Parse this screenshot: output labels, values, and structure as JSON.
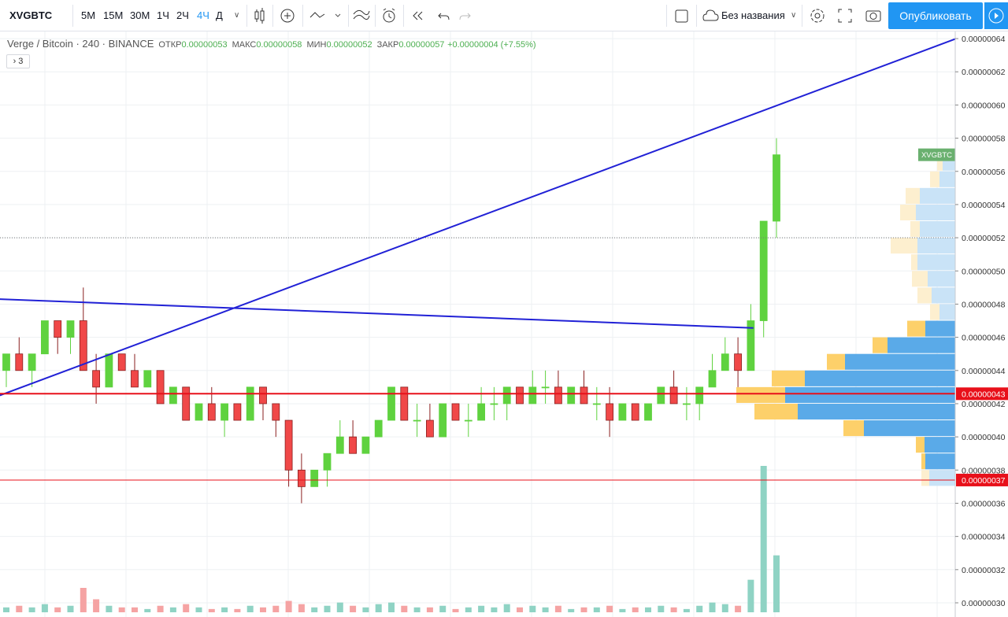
{
  "toolbar": {
    "symbol": "XVGBTC",
    "intervals": [
      "5М",
      "15М",
      "30М",
      "1Ч",
      "2Ч",
      "4Ч",
      "Д"
    ],
    "active_interval": 5,
    "layout_name": "Без названия",
    "publish": "Опубликовать"
  },
  "legend": {
    "title": "Verge / Bitcoin · 240 · BINANCE",
    "items": [
      {
        "label": "ОТКР",
        "value": "0.00000053"
      },
      {
        "label": "МАКС",
        "value": "0.00000058"
      },
      {
        "label": "МИН",
        "value": "0.00000052"
      },
      {
        "label": "ЗАКР",
        "value": "0.00000057"
      }
    ],
    "change": "+0.00000004 (+7.55%)",
    "indicators": "3"
  },
  "chart_data": {
    "type": "candlestick",
    "grid": true,
    "up_color": "#5fd23f",
    "down_color": "#f04848",
    "volume_up_color": "#8fd3c4",
    "volume_down_color": "#f5a3a3",
    "ylim": [
      2.943e-07,
      6.443e-07
    ],
    "yticks": [
      {
        "value": 3e-07,
        "label": "0.00000030"
      },
      {
        "value": 3.2e-07,
        "label": "0.00000032"
      },
      {
        "value": 3.4e-07,
        "label": "0.00000034"
      },
      {
        "value": 3.6e-07,
        "label": "0.00000036"
      },
      {
        "value": 3.8e-07,
        "label": "0.00000038"
      },
      {
        "value": 4e-07,
        "label": "0.00000040"
      },
      {
        "value": 4.2e-07,
        "label": "0.00000042"
      },
      {
        "value": 4.4e-07,
        "label": "0.00000044"
      },
      {
        "value": 4.6e-07,
        "label": "0.00000046"
      },
      {
        "value": 4.8e-07,
        "label": "0.00000048"
      },
      {
        "value": 5e-07,
        "label": "0.00000050"
      },
      {
        "value": 5.2e-07,
        "label": "0.00000052"
      },
      {
        "value": 5.4e-07,
        "label": "0.00000054"
      },
      {
        "value": 5.6e-07,
        "label": "0.00000056"
      },
      {
        "value": 5.8e-07,
        "label": "0.00000058"
      },
      {
        "value": 6e-07,
        "label": "0.00000060"
      },
      {
        "value": 6.2e-07,
        "label": "0.00000062"
      },
      {
        "value": 6.4e-07,
        "label": "0.00000064"
      }
    ],
    "open": [
      4.4e-07,
      4.5e-07,
      4.4e-07,
      4.5e-07,
      4.7e-07,
      4.6e-07,
      4.7e-07,
      4.4e-07,
      4.3e-07,
      4.5e-07,
      4.4e-07,
      4.3e-07,
      4.4e-07,
      4.2e-07,
      4.3e-07,
      4.1e-07,
      4.2e-07,
      4.1e-07,
      4.2e-07,
      4.1e-07,
      4.3e-07,
      4.2e-07,
      4.1e-07,
      3.8e-07,
      3.7e-07,
      3.8e-07,
      3.9e-07,
      4e-07,
      3.9e-07,
      4e-07,
      4.1e-07,
      4.3e-07,
      4.1e-07,
      4.1e-07,
      4e-07,
      4.2e-07,
      4.1e-07,
      4.1e-07,
      4.2e-07,
      4.2e-07,
      4.3e-07,
      4.2e-07,
      4.3e-07,
      4.3e-07,
      4.2e-07,
      4.3e-07,
      4.2e-07,
      4.2e-07,
      4.1e-07,
      4.2e-07,
      4.1e-07,
      4.2e-07,
      4.3e-07,
      4.2e-07,
      4.2e-07,
      4.3e-07,
      4.4e-07,
      4.5e-07,
      4.4e-07,
      4.7e-07,
      5.3e-07
    ],
    "high": [
      4.5e-07,
      4.6e-07,
      4.5e-07,
      4.7e-07,
      4.7e-07,
      4.7e-07,
      4.9e-07,
      4.5e-07,
      4.5e-07,
      4.5e-07,
      4.5e-07,
      4.4e-07,
      4.4e-07,
      4.3e-07,
      4.3e-07,
      4.2e-07,
      4.3e-07,
      4.2e-07,
      4.2e-07,
      4.3e-07,
      4.3e-07,
      4.2e-07,
      4.1e-07,
      3.9e-07,
      3.8e-07,
      3.9e-07,
      4.1e-07,
      4.1e-07,
      4e-07,
      4.1e-07,
      4.3e-07,
      4.3e-07,
      4.2e-07,
      4.2e-07,
      4.2e-07,
      4.2e-07,
      4.2e-07,
      4.3e-07,
      4.3e-07,
      4.3e-07,
      4.3e-07,
      4.4e-07,
      4.4e-07,
      4.4e-07,
      4.3e-07,
      4.4e-07,
      4.3e-07,
      4.3e-07,
      4.2e-07,
      4.2e-07,
      4.2e-07,
      4.3e-07,
      4.4e-07,
      4.3e-07,
      4.3e-07,
      4.5e-07,
      4.6e-07,
      4.6e-07,
      4.8e-07,
      5.3e-07,
      5.8e-07
    ],
    "low": [
      4.3e-07,
      4.4e-07,
      4.3e-07,
      4.5e-07,
      4.5e-07,
      4.5e-07,
      4.4e-07,
      4.2e-07,
      4.3e-07,
      4.4e-07,
      4.3e-07,
      4.3e-07,
      4.2e-07,
      4.2e-07,
      4.1e-07,
      4.1e-07,
      4.1e-07,
      4e-07,
      4.1e-07,
      4.1e-07,
      4.1e-07,
      4e-07,
      3.7e-07,
      3.6e-07,
      3.7e-07,
      3.7e-07,
      3.9e-07,
      3.9e-07,
      3.9e-07,
      4e-07,
      4.1e-07,
      4.1e-07,
      4e-07,
      4e-07,
      4e-07,
      4.1e-07,
      4e-07,
      4.1e-07,
      4.1e-07,
      4.1e-07,
      4.2e-07,
      4.2e-07,
      4.2e-07,
      4.2e-07,
      4.2e-07,
      4.2e-07,
      4.1e-07,
      4e-07,
      4.1e-07,
      4.1e-07,
      4.1e-07,
      4.2e-07,
      4.2e-07,
      4.1e-07,
      4.1e-07,
      4.3e-07,
      4.4e-07,
      4.3e-07,
      4.4e-07,
      4.6e-07,
      5.2e-07
    ],
    "close": [
      4.5e-07,
      4.4e-07,
      4.5e-07,
      4.7e-07,
      4.6e-07,
      4.7e-07,
      4.4e-07,
      4.3e-07,
      4.5e-07,
      4.4e-07,
      4.3e-07,
      4.4e-07,
      4.2e-07,
      4.3e-07,
      4.1e-07,
      4.2e-07,
      4.1e-07,
      4.2e-07,
      4.1e-07,
      4.3e-07,
      4.2e-07,
      4.1e-07,
      3.8e-07,
      3.7e-07,
      3.8e-07,
      3.9e-07,
      4e-07,
      3.9e-07,
      4e-07,
      4.1e-07,
      4.3e-07,
      4.1e-07,
      4.1e-07,
      4e-07,
      4.2e-07,
      4.1e-07,
      4.1e-07,
      4.2e-07,
      4.2e-07,
      4.3e-07,
      4.2e-07,
      4.3e-07,
      4.3e-07,
      4.2e-07,
      4.3e-07,
      4.2e-07,
      4.2e-07,
      4.1e-07,
      4.2e-07,
      4.1e-07,
      4.2e-07,
      4.3e-07,
      4.2e-07,
      4.2e-07,
      4.3e-07,
      4.4e-07,
      4.5e-07,
      4.4e-07,
      4.7e-07,
      5.3e-07,
      5.7e-07
    ],
    "volume": [
      3,
      4,
      3,
      5,
      3,
      4,
      15,
      8,
      4,
      3,
      3,
      2,
      4,
      3,
      5,
      3,
      2,
      3,
      2,
      4,
      3,
      4,
      7,
      5,
      3,
      4,
      6,
      4,
      3,
      5,
      6,
      4,
      3,
      3,
      4,
      2,
      3,
      4,
      3,
      5,
      3,
      4,
      3,
      4,
      2,
      3,
      3,
      4,
      2,
      3,
      3,
      4,
      3,
      2,
      4,
      6,
      5,
      4,
      20,
      90,
      35
    ],
    "volume_profile": {
      "up_color": "#5aaae8",
      "down_color": "#fdd06a",
      "light_up_color": "#c9e3f7",
      "light_down_color": "#fdefcf",
      "value_area": [
        3.8e-07,
        4.7e-07
      ],
      "rows": [
        {
          "price": 5.6e-07,
          "up": 16,
          "down": 7
        },
        {
          "price": 5.5e-07,
          "up": 20,
          "down": 12
        },
        {
          "price": 5.4e-07,
          "up": 45,
          "down": 18
        },
        {
          "price": 5.3e-07,
          "up": 50,
          "down": 20
        },
        {
          "price": 5.2e-07,
          "up": 45,
          "down": 12
        },
        {
          "price": 5.1e-07,
          "up": 48,
          "down": 34
        },
        {
          "price": 5e-07,
          "up": 48,
          "down": 8
        },
        {
          "price": 4.9e-07,
          "up": 35,
          "down": 20
        },
        {
          "price": 4.8e-07,
          "up": 30,
          "down": 18
        },
        {
          "price": 4.7e-07,
          "up": 20,
          "down": 12
        },
        {
          "price": 4.6e-07,
          "up": 38,
          "down": 23
        },
        {
          "price": 4.5e-07,
          "up": 86,
          "down": 19
        },
        {
          "price": 4.4e-07,
          "up": 140,
          "down": 23
        },
        {
          "price": 4.3e-07,
          "up": 191,
          "down": 42
        },
        {
          "price": 4.2e-07,
          "up": 216,
          "down": 62
        },
        {
          "price": 4.1e-07,
          "up": 200,
          "down": 55
        },
        {
          "price": 4e-07,
          "up": 116,
          "down": 26
        },
        {
          "price": 3.9e-07,
          "up": 39,
          "down": 11
        },
        {
          "price": 3.8e-07,
          "up": 38,
          "down": 5
        },
        {
          "price": 3.7e-07,
          "up": 33,
          "down": 10
        }
      ]
    },
    "trend_lines": [
      {
        "x": [
          -0.5,
          74
        ],
        "y": [
          4.25e-07,
          6.4e-07
        ],
        "color": "#2121d6"
      },
      {
        "x": [
          -0.5,
          58.2
        ],
        "y": [
          4.83e-07,
          4.656e-07
        ],
        "color": "#2121d6"
      }
    ],
    "price_lines": [
      {
        "value": 4.26e-07,
        "label": "0.00000043",
        "color": "#e8101a",
        "width": 2
      },
      {
        "value": 3.74e-07,
        "label": "0.00000037",
        "color": "#e8101a",
        "width": 1
      }
    ],
    "dotted_line": 5.2e-07,
    "symbol_badge": {
      "label": "XVGBTC",
      "value": 5.7e-07,
      "color": "#6ab06f"
    }
  }
}
